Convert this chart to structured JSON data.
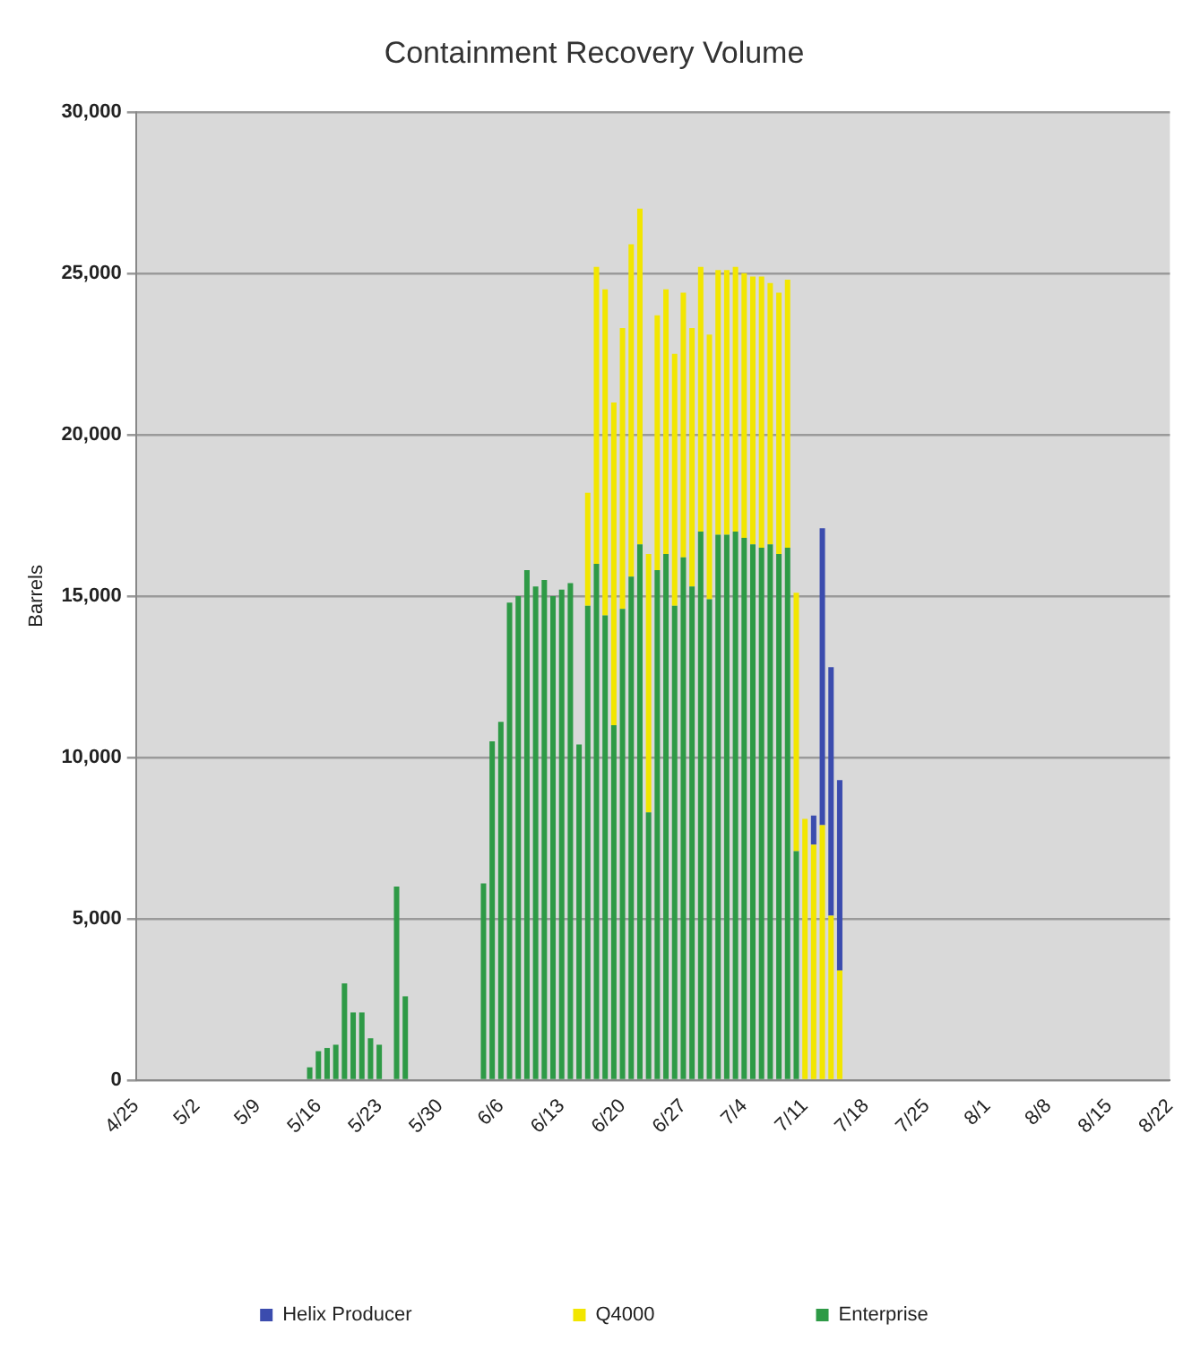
{
  "chart_data": {
    "type": "bar",
    "title": "Containment Recovery Volume",
    "ylabel": "Barrels",
    "stacked": true,
    "legend": "bottom",
    "grid": "y",
    "categories": [
      "4/25",
      null,
      null,
      null,
      null,
      null,
      null,
      "5/2",
      null,
      null,
      null,
      null,
      null,
      null,
      "5/9",
      null,
      null,
      null,
      null,
      null,
      null,
      "5/16",
      null,
      null,
      null,
      null,
      null,
      null,
      "5/23",
      null,
      null,
      null,
      null,
      null,
      null,
      "5/30",
      null,
      null,
      null,
      null,
      null,
      null,
      "6/6",
      null,
      null,
      null,
      null,
      null,
      null,
      "6/13",
      null,
      null,
      null,
      null,
      null,
      null,
      "6/20",
      null,
      null,
      null,
      null,
      null,
      null,
      "6/27",
      null,
      null,
      null,
      null,
      null,
      null,
      "7/4",
      null,
      null,
      null,
      null,
      null,
      null,
      "7/11",
      null,
      null,
      null,
      null,
      null,
      null,
      "7/18",
      null,
      null,
      null,
      null,
      null,
      null,
      "7/25",
      null,
      null,
      null,
      null,
      null,
      null,
      "8/1",
      null,
      null,
      null,
      null,
      null,
      null,
      "8/8",
      null,
      null,
      null,
      null,
      null,
      null,
      "8/15",
      null,
      null,
      null,
      null,
      null,
      null,
      "8/22"
    ],
    "ylim": [
      0,
      30000
    ],
    "yticks": [
      0,
      {
        "value": 5000,
        "label": "5,000"
      },
      {
        "value": 10000,
        "label": "10,000"
      },
      {
        "value": 15000,
        "label": "15,000"
      },
      {
        "value": 20000,
        "label": "20,000"
      },
      {
        "value": 25000,
        "label": "25,000"
      },
      {
        "value": 30000,
        "label": "30,000"
      }
    ],
    "series": [
      {
        "name": "Enterprise",
        "color": "#2e9a46",
        "values": [
          null,
          null,
          null,
          null,
          null,
          null,
          null,
          null,
          null,
          null,
          null,
          null,
          null,
          null,
          null,
          null,
          null,
          null,
          null,
          null,
          400,
          900,
          1000,
          1100,
          3000,
          2100,
          2100,
          1300,
          1100,
          null,
          6000,
          2600,
          null,
          null,
          null,
          null,
          null,
          null,
          null,
          null,
          6100,
          10500,
          11100,
          14800,
          15000,
          15800,
          15300,
          15500,
          15000,
          15200,
          15400,
          10400,
          14700,
          16000,
          14400,
          11000,
          14600,
          15600,
          16600,
          8300,
          15800,
          16300,
          14700,
          16200,
          15300,
          17000,
          14900,
          16900,
          16900,
          17000,
          16800,
          16600,
          16500,
          16600,
          16300,
          16500,
          7100,
          null,
          null,
          null,
          null,
          null,
          null,
          null,
          null,
          null,
          null,
          null,
          null,
          null,
          null,
          null,
          null,
          null,
          null,
          null,
          null,
          null,
          null,
          null,
          null,
          null,
          null,
          null,
          null,
          null,
          null,
          null,
          null,
          null,
          null,
          null,
          null,
          null,
          null,
          null,
          null,
          null,
          null,
          null
        ]
      },
      {
        "name": "Q4000",
        "color": "#f2e600",
        "values": [
          null,
          null,
          null,
          null,
          null,
          null,
          null,
          null,
          null,
          null,
          null,
          null,
          null,
          null,
          null,
          null,
          null,
          null,
          null,
          null,
          null,
          null,
          null,
          null,
          null,
          null,
          null,
          null,
          null,
          null,
          null,
          null,
          null,
          null,
          null,
          null,
          null,
          null,
          null,
          null,
          null,
          null,
          null,
          null,
          null,
          null,
          null,
          null,
          null,
          null,
          null,
          null,
          3500,
          9200,
          10100,
          10000,
          8700,
          10300,
          10400,
          8000,
          7900,
          8200,
          7800,
          8200,
          8000,
          8200,
          8200,
          8200,
          8200,
          8200,
          8200,
          8300,
          8400,
          8100,
          8100,
          8300,
          8000,
          8100,
          7300,
          7900,
          5100,
          3400,
          null,
          null,
          null,
          null,
          null,
          null,
          null,
          null,
          null,
          null,
          null,
          null,
          null,
          null,
          null,
          null,
          null,
          null,
          null,
          null,
          null,
          null,
          null,
          null,
          null,
          null,
          null,
          null,
          null,
          null,
          null,
          null,
          null,
          null,
          null,
          null,
          null,
          null
        ]
      },
      {
        "name": "Helix Producer",
        "color": "#3b4cae",
        "values": [
          null,
          null,
          null,
          null,
          null,
          null,
          null,
          null,
          null,
          null,
          null,
          null,
          null,
          null,
          null,
          null,
          null,
          null,
          null,
          null,
          null,
          null,
          null,
          null,
          null,
          null,
          null,
          null,
          null,
          null,
          null,
          null,
          null,
          null,
          null,
          null,
          null,
          null,
          null,
          null,
          null,
          null,
          null,
          null,
          null,
          null,
          null,
          null,
          null,
          null,
          null,
          null,
          null,
          null,
          null,
          null,
          null,
          null,
          null,
          null,
          null,
          null,
          null,
          null,
          null,
          null,
          null,
          null,
          null,
          null,
          null,
          null,
          null,
          null,
          null,
          null,
          null,
          null,
          900,
          9200,
          7700,
          5900,
          null,
          null,
          null,
          null,
          null,
          null,
          null,
          null,
          null,
          null,
          null,
          null,
          null,
          null,
          null,
          null,
          null,
          null,
          null,
          null,
          null,
          null,
          null,
          null,
          null,
          null,
          null,
          null,
          null,
          null,
          null,
          null,
          null,
          null,
          null,
          null,
          null,
          null
        ]
      }
    ]
  }
}
